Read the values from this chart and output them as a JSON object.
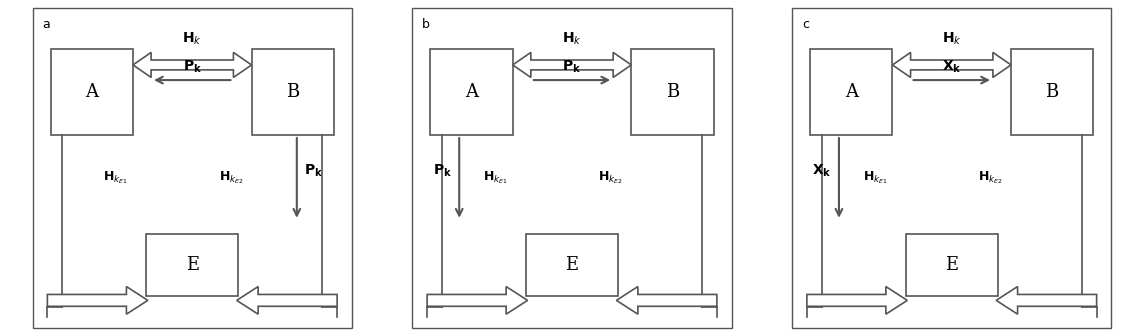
{
  "bg_color": "#ffffff",
  "line_color": "#555555",
  "text_color": "#000000",
  "panels": [
    {
      "label": "a",
      "top_label": "H_k",
      "middle_label": "P_k",
      "middle_dir": "left",
      "vert_side": "right",
      "vert_label": "P_k",
      "left_channel": "H_{k_{E1}}",
      "right_channel": "H_{k_{E2}}"
    },
    {
      "label": "b",
      "top_label": "H_k",
      "middle_label": "P_k",
      "middle_dir": "right",
      "vert_side": "left",
      "vert_label": "P_k",
      "left_channel": "H_{k_{E1}}",
      "right_channel": "H_{k_{E2}}"
    },
    {
      "label": "c",
      "top_label": "H_k",
      "middle_label": "X_k",
      "middle_dir": "right",
      "vert_side": "left",
      "vert_label": "X_k",
      "left_channel": "H_{k_{E1}}",
      "right_channel": "H_{k_{E2}}"
    }
  ]
}
